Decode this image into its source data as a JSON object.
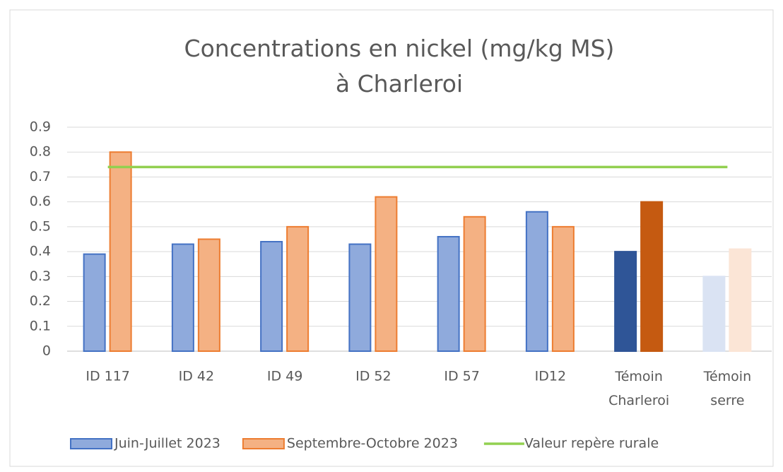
{
  "chart_data": {
    "type": "bar",
    "title": "Concentrations en nickel (mg/kg MS)\nà Charleroi",
    "categories": [
      "ID 117",
      "ID 42",
      "ID 49",
      "ID 52",
      "ID 57",
      "ID12",
      "Témoin\nCharleroi",
      "Témoin\nserre"
    ],
    "series": [
      {
        "name": "Juin-Juillet 2023",
        "color": "#8faadc",
        "edge": "#4472c4",
        "colors": [
          "#8faadc",
          "#8faadc",
          "#8faadc",
          "#8faadc",
          "#8faadc",
          "#8faadc",
          "#2f5597",
          "#dae3f3"
        ],
        "values": [
          0.39,
          0.43,
          0.44,
          0.43,
          0.46,
          0.56,
          0.4,
          0.3
        ]
      },
      {
        "name": "Septembre-Octobre 2023",
        "color": "#f4b183",
        "edge": "#ed7d31",
        "colors": [
          "#f4b183",
          "#f4b183",
          "#f4b183",
          "#f4b183",
          "#f4b183",
          "#f4b183",
          "#c55a11",
          "#fbe5d6"
        ],
        "values": [
          0.8,
          0.45,
          0.5,
          0.62,
          0.54,
          0.5,
          0.6,
          0.41
        ]
      },
      {
        "name": "Valeur repère rurale",
        "type": "line",
        "color": "#92d050",
        "values": [
          0.74,
          0.74,
          0.74,
          0.74,
          0.74,
          0.74,
          0.74,
          0.74
        ]
      }
    ],
    "ylim": [
      0,
      0.9
    ],
    "yticks": [
      0,
      0.1,
      0.2,
      0.3,
      0.4,
      0.5,
      0.6,
      0.7,
      0.8,
      0.9
    ],
    "grid": true,
    "legend": "bottom"
  }
}
